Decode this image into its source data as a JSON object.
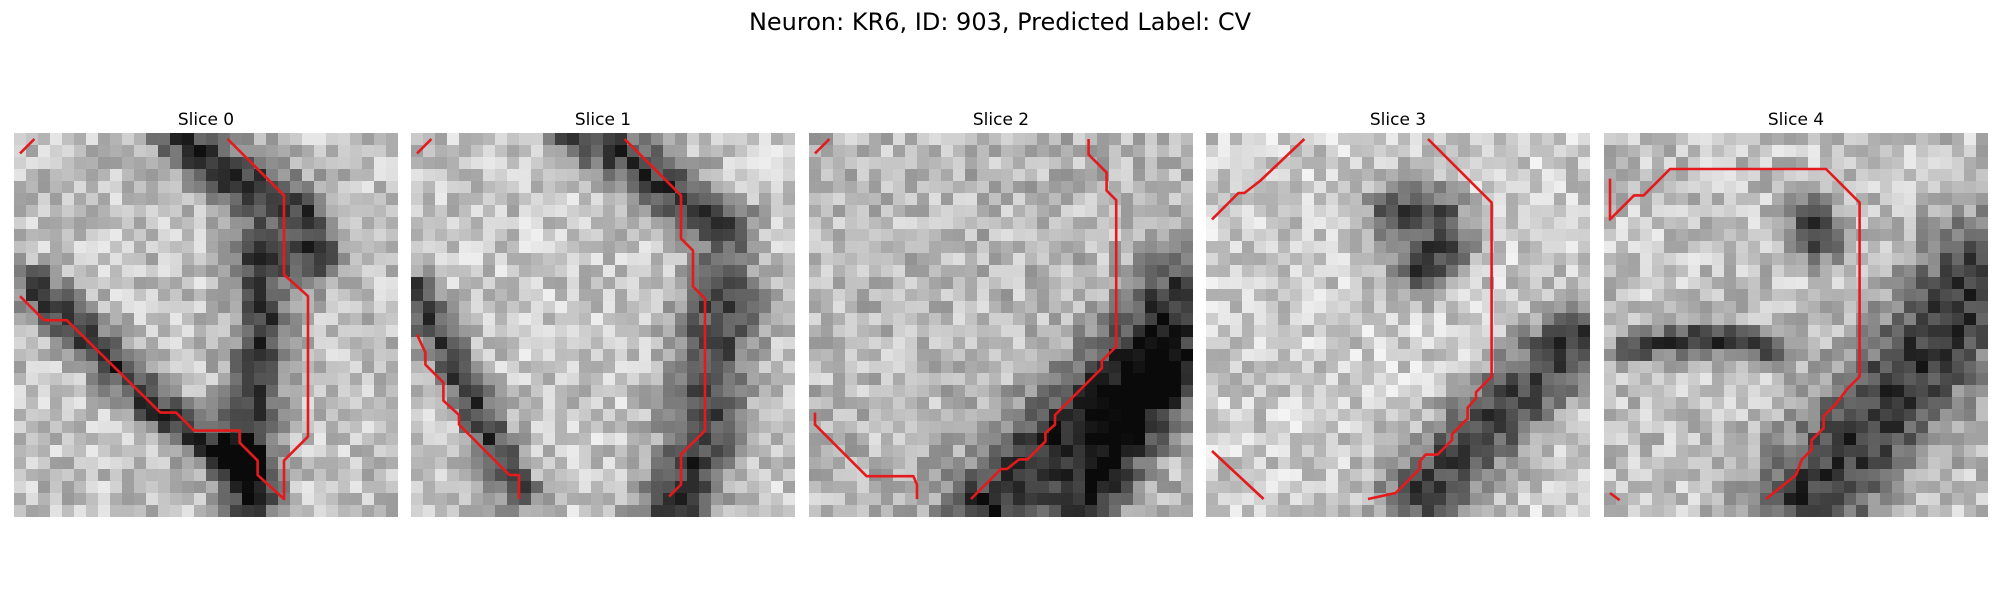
{
  "figure": {
    "title": "Neuron: KR6, ID: 903, Predicted Label: CV"
  },
  "panels": [
    {
      "title": "Slice 0"
    },
    {
      "title": "Slice 1"
    },
    {
      "title": "Slice 2"
    },
    {
      "title": "Slice 3"
    },
    {
      "title": "Slice 4"
    }
  ],
  "colors": {
    "contour": "#e41a1c",
    "colormap": "grayscale"
  }
}
